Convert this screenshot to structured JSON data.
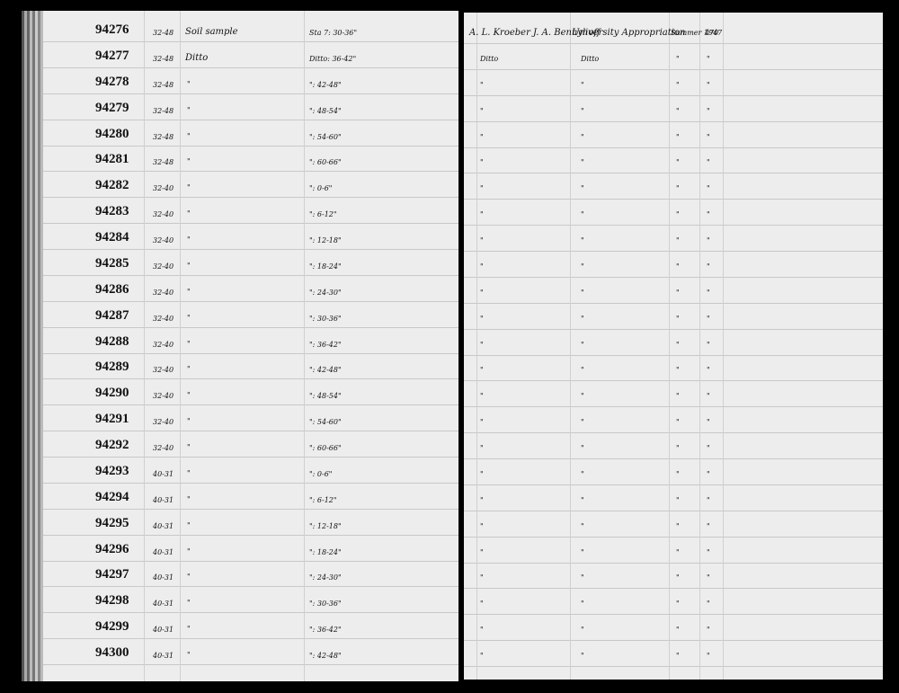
{
  "left_page": {
    "rows": [
      {
        "number": "94276",
        "code": "32-48",
        "description": "Soil sample",
        "location": "Sta 7: 30-36\""
      },
      {
        "number": "94277",
        "code": "32-48",
        "description": "Ditto",
        "location": "Ditto: 36-42\""
      },
      {
        "number": "94278",
        "code": "32-48",
        "description": "\"",
        "location": "\": 42-48\""
      },
      {
        "number": "94279",
        "code": "32-48",
        "description": "\"",
        "location": "\": 48-54\""
      },
      {
        "number": "94280",
        "code": "32-48",
        "description": "\"",
        "location": "\": 54-60\""
      },
      {
        "number": "94281",
        "code": "32-48",
        "description": "\"",
        "location": "\": 60-66\""
      },
      {
        "number": "94282",
        "code": "32-40",
        "description": "\"",
        "location": "\": 0-6\""
      },
      {
        "number": "94283",
        "code": "32-40",
        "description": "\"",
        "location": "\": 6-12\""
      },
      {
        "number": "94284",
        "code": "32-40",
        "description": "\"",
        "location": "\": 12-18\""
      },
      {
        "number": "94285",
        "code": "32-40",
        "description": "\"",
        "location": "\": 18-24\""
      },
      {
        "number": "94286",
        "code": "32-40",
        "description": "\"",
        "location": "\": 24-30\""
      },
      {
        "number": "94287",
        "code": "32-40",
        "description": "\"",
        "location": "\": 30-36\""
      },
      {
        "number": "94288",
        "code": "32-40",
        "description": "\"",
        "location": "\": 36-42\""
      },
      {
        "number": "94289",
        "code": "32-40",
        "description": "\"",
        "location": "\": 42-48\""
      },
      {
        "number": "94290",
        "code": "32-40",
        "description": "\"",
        "location": "\": 48-54\""
      },
      {
        "number": "94291",
        "code": "32-40",
        "description": "\"",
        "location": "\": 54-60\""
      },
      {
        "number": "94292",
        "code": "32-40",
        "description": "\"",
        "location": "\": 60-66\""
      },
      {
        "number": "94293",
        "code": "40-31",
        "description": "\"",
        "location": "\": 0-6\""
      },
      {
        "number": "94294",
        "code": "40-31",
        "description": "\"",
        "location": "\": 6-12\""
      },
      {
        "number": "94295",
        "code": "40-31",
        "description": "\"",
        "location": "\": 12-18\""
      },
      {
        "number": "94296",
        "code": "40-31",
        "description": "\"",
        "location": "\": 18-24\""
      },
      {
        "number": "94297",
        "code": "40-31",
        "description": "\"",
        "location": "\": 24-30\""
      },
      {
        "number": "94298",
        "code": "40-31",
        "description": "\"",
        "location": "\": 30-36\""
      },
      {
        "number": "94299",
        "code": "40-31",
        "description": "\"",
        "location": "\": 36-42\""
      },
      {
        "number": "94300",
        "code": "40-31",
        "description": "\"",
        "location": "\": 42-48\""
      }
    ]
  },
  "right_page": {
    "rows": [
      {
        "collector": "A. L. Kroeber  J. A. Bennyhoff",
        "source": "University Appropriation",
        "date": "Summer 1947",
        "accession": "470"
      },
      {
        "collector": "Ditto",
        "source": "Ditto",
        "date": "\"",
        "accession": "\""
      },
      {
        "collector": "\"",
        "source": "\"",
        "date": "\"",
        "accession": "\""
      },
      {
        "collector": "\"",
        "source": "\"",
        "date": "\"",
        "accession": "\""
      },
      {
        "collector": "\"",
        "source": "\"",
        "date": "\"",
        "accession": "\""
      },
      {
        "collector": "\"",
        "source": "\"",
        "date": "\"",
        "accession": "\""
      },
      {
        "collector": "\"",
        "source": "\"",
        "date": "\"",
        "accession": "\""
      },
      {
        "collector": "\"",
        "source": "\"",
        "date": "\"",
        "accession": "\""
      },
      {
        "collector": "\"",
        "source": "\"",
        "date": "\"",
        "accession": "\""
      },
      {
        "collector": "\"",
        "source": "\"",
        "date": "\"",
        "accession": "\""
      },
      {
        "collector": "\"",
        "source": "\"",
        "date": "\"",
        "accession": "\""
      },
      {
        "collector": "\"",
        "source": "\"",
        "date": "\"",
        "accession": "\""
      },
      {
        "collector": "\"",
        "source": "\"",
        "date": "\"",
        "accession": "\""
      },
      {
        "collector": "\"",
        "source": "\"",
        "date": "\"",
        "accession": "\""
      },
      {
        "collector": "\"",
        "source": "\"",
        "date": "\"",
        "accession": "\""
      },
      {
        "collector": "\"",
        "source": "\"",
        "date": "\"",
        "accession": "\""
      },
      {
        "collector": "\"",
        "source": "\"",
        "date": "\"",
        "accession": "\""
      },
      {
        "collector": "\"",
        "source": "\"",
        "date": "\"",
        "accession": "\""
      },
      {
        "collector": "\"",
        "source": "\"",
        "date": "\"",
        "accession": "\""
      },
      {
        "collector": "\"",
        "source": "\"",
        "date": "\"",
        "accession": "\""
      },
      {
        "collector": "\"",
        "source": "\"",
        "date": "\"",
        "accession": "\""
      },
      {
        "collector": "\"",
        "source": "\"",
        "date": "\"",
        "accession": "\""
      },
      {
        "collector": "\"",
        "source": "\"",
        "date": "\"",
        "accession": "\""
      },
      {
        "collector": "\"",
        "source": "\"",
        "date": "\"",
        "accession": "\""
      },
      {
        "collector": "\"",
        "source": "\"",
        "date": "\"",
        "accession": "\""
      }
    ]
  }
}
